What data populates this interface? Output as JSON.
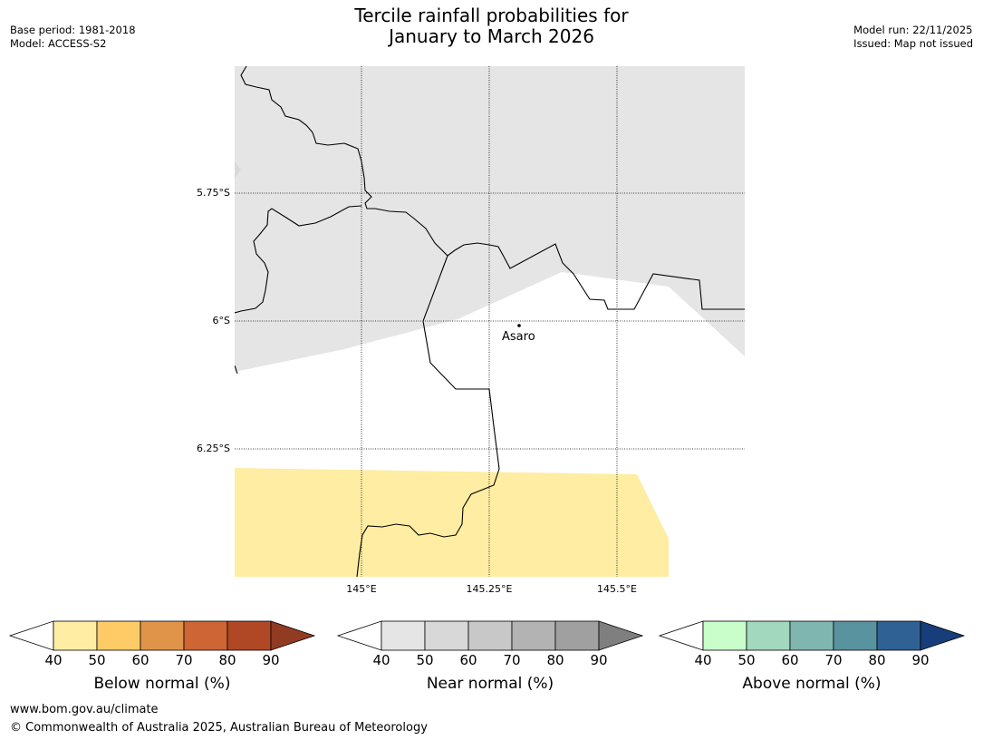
{
  "header": {
    "title_line1": "Tercile rainfall probabilities for",
    "title_line2": "January to March 2026",
    "base_period": "Base period: 1981-2018",
    "model": "Model: ACCESS-S2",
    "model_run": "Model run: 22/11/2025",
    "issued": "Issued: Map not issued"
  },
  "map": {
    "lat_labels": [
      "5.75°S",
      "6°S",
      "6.25°S"
    ],
    "lon_labels": [
      "145°E",
      "145.25°E",
      "145.5°E"
    ],
    "place": "Asaro",
    "colors": {
      "near_normal_fill": "#e5e5e5",
      "below_normal_fill": "#feeda2"
    }
  },
  "colorbars": [
    {
      "name": "below",
      "label": "Below normal (%)",
      "ticks": [
        "40",
        "50",
        "60",
        "70",
        "80",
        "90"
      ],
      "colors": [
        "#ffffff",
        "#feeda2",
        "#fecb66",
        "#e0944a",
        "#cd6534",
        "#b04826",
        "#913b23"
      ]
    },
    {
      "name": "near",
      "label": "Near normal (%)",
      "ticks": [
        "40",
        "50",
        "60",
        "70",
        "80",
        "90"
      ],
      "colors": [
        "#ffffff",
        "#e5e5e5",
        "#d8d8d8",
        "#c8c8c8",
        "#b3b3b3",
        "#a0a0a0",
        "#7f7f7f"
      ]
    },
    {
      "name": "above",
      "label": "Above normal (%)",
      "ticks": [
        "40",
        "50",
        "60",
        "70",
        "80",
        "90"
      ],
      "colors": [
        "#ffffff",
        "#c9fdc9",
        "#a2d8bd",
        "#7fb6b0",
        "#5a93a0",
        "#2f6194",
        "#173d7a"
      ]
    }
  ],
  "footer": {
    "url": "www.bom.gov.au/climate",
    "copyright": "© Commonwealth of Australia 2025, Australian Bureau of Meteorology"
  }
}
